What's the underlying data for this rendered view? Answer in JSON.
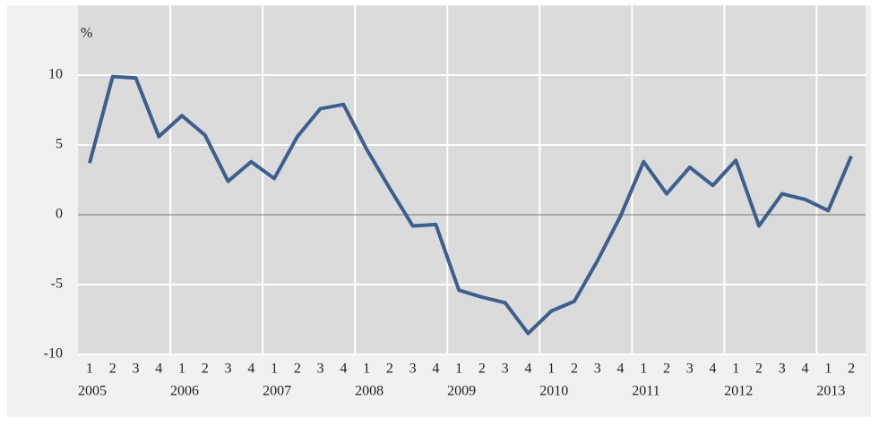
{
  "chart_data": {
    "type": "line",
    "y_unit": "%",
    "categories": [
      "1",
      "2",
      "3",
      "4",
      "1",
      "2",
      "3",
      "4",
      "1",
      "2",
      "3",
      "4",
      "1",
      "2",
      "3",
      "4",
      "1",
      "2",
      "3",
      "4",
      "1",
      "2",
      "3",
      "4",
      "1",
      "2",
      "3",
      "4",
      "1",
      "2",
      "3",
      "4",
      "1",
      "2"
    ],
    "years": [
      "2005",
      null,
      null,
      null,
      "2006",
      null,
      null,
      null,
      "2007",
      null,
      null,
      null,
      "2008",
      null,
      null,
      null,
      "2009",
      null,
      null,
      null,
      "2010",
      null,
      null,
      null,
      "2011",
      null,
      null,
      null,
      "2012",
      null,
      null,
      null,
      "2013",
      null
    ],
    "series": [
      {
        "color": "#3c5f8e",
        "values": [
          3.7,
          9.9,
          9.8,
          5.6,
          7.1,
          5.7,
          2.4,
          3.8,
          2.6,
          5.6,
          7.6,
          7.9,
          4.7,
          1.9,
          -0.8,
          -0.7,
          -5.4,
          -5.9,
          -6.3,
          -8.5,
          -6.9,
          -6.2,
          -3.3,
          -0.1,
          3.8,
          1.5,
          3.4,
          2.1,
          3.9,
          -0.8,
          1.5,
          1.1,
          0.3,
          4.2
        ]
      }
    ],
    "ylim": [
      -10,
      15
    ],
    "yticks": [
      -10,
      -5,
      0,
      5,
      10
    ],
    "grid": true
  }
}
